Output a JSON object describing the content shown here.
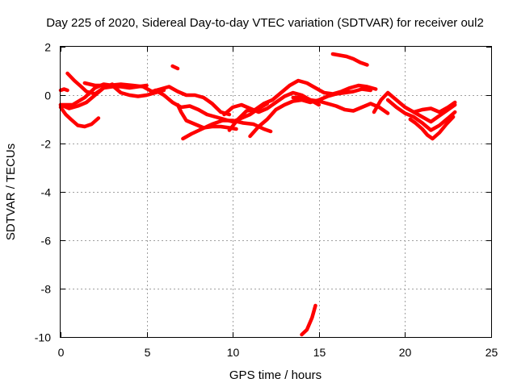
{
  "chart_data": {
    "type": "line",
    "title": "Day 225 of 2020, Sidereal Day-to-day VTEC variation (SDTVAR) for receiver oul2",
    "xlabel": "GPS time / hours",
    "ylabel": "SDTVAR / TECUs",
    "xlim": [
      0,
      25
    ],
    "ylim": [
      -10,
      2
    ],
    "xticks": [
      0,
      5,
      10,
      15,
      20,
      25
    ],
    "yticks": [
      -10,
      -8,
      -6,
      -4,
      -2,
      0,
      2
    ],
    "grid": true,
    "legend": "none",
    "series_color": "#ff0000",
    "series": [
      {
        "name": "track-1",
        "x": [
          0.0,
          0.2,
          0.4
        ],
        "y": [
          0.2,
          0.25,
          0.2
        ]
      },
      {
        "name": "track-2",
        "x": [
          0.0,
          0.3,
          0.6,
          1.0,
          1.4,
          1.8,
          2.2
        ],
        "y": [
          -0.5,
          -0.8,
          -1.0,
          -1.25,
          -1.3,
          -1.2,
          -0.95
        ]
      },
      {
        "name": "track-3",
        "x": [
          0.0,
          0.5,
          1.0,
          1.5,
          2.0,
          2.5,
          3.0
        ],
        "y": [
          -0.4,
          -0.55,
          -0.45,
          -0.3,
          0.0,
          0.3,
          0.45
        ]
      },
      {
        "name": "track-4",
        "x": [
          0.4,
          0.8,
          1.2,
          1.5,
          2.0,
          2.5,
          3.0,
          3.5,
          4.0,
          4.5,
          5.0
        ],
        "y": [
          0.9,
          0.6,
          0.35,
          0.15,
          0.05,
          0.3,
          0.35,
          0.35,
          0.3,
          0.35,
          0.4
        ]
      },
      {
        "name": "track-5",
        "x": [
          0.0,
          0.7,
          1.4,
          2.0,
          2.5,
          3.0,
          3.5,
          4.0,
          4.5,
          5.0,
          5.5,
          6.0
        ],
        "y": [
          -0.4,
          -0.4,
          -0.1,
          0.3,
          0.45,
          0.4,
          0.1,
          0.0,
          -0.05,
          0.0,
          0.1,
          0.2
        ]
      },
      {
        "name": "track-6",
        "x": [
          1.4,
          2.0,
          2.8,
          3.5,
          4.2,
          4.8,
          5.3,
          5.8,
          6.3,
          6.8,
          7.3,
          7.8,
          8.3,
          8.8,
          9.3,
          9.8
        ],
        "y": [
          0.5,
          0.4,
          0.4,
          0.45,
          0.4,
          0.35,
          0.15,
          0.25,
          0.35,
          0.15,
          0.0,
          0.0,
          -0.1,
          -0.35,
          -0.7,
          -0.8
        ]
      },
      {
        "name": "track-7",
        "x": [
          6.5,
          6.8
        ],
        "y": [
          1.2,
          1.1
        ]
      },
      {
        "name": "track-8",
        "x": [
          5.5,
          6.0,
          6.5,
          7.0,
          7.5,
          8.0,
          8.5,
          9.0,
          9.5,
          10.0,
          10.5,
          11.0,
          11.5,
          12.0
        ],
        "y": [
          0.2,
          0.0,
          -0.3,
          -0.5,
          -0.45,
          -0.6,
          -0.8,
          -0.9,
          -1.0,
          -1.1,
          -0.95,
          -0.8,
          -0.55,
          -0.35
        ]
      },
      {
        "name": "track-9",
        "x": [
          6.8,
          7.0,
          7.3,
          7.8,
          8.3,
          8.8,
          9.3,
          9.8,
          10.2
        ],
        "y": [
          -0.4,
          -0.7,
          -1.05,
          -1.2,
          -1.35,
          -1.3,
          -1.3,
          -1.35,
          -1.4
        ]
      },
      {
        "name": "track-10",
        "x": [
          7.1,
          7.6,
          8.2,
          8.8,
          9.4,
          10.0,
          10.6,
          11.2,
          11.8,
          12.2
        ],
        "y": [
          -1.8,
          -1.6,
          -1.4,
          -1.2,
          -1.05,
          -1.05,
          -1.15,
          -1.2,
          -1.4,
          -1.5
        ]
      },
      {
        "name": "track-11",
        "x": [
          9.5,
          10.0,
          10.5,
          11.0,
          11.5,
          12.0,
          12.5,
          13.0,
          13.5,
          14.0,
          14.5,
          15.0
        ],
        "y": [
          -0.8,
          -0.5,
          -0.4,
          -0.55,
          -0.7,
          -0.55,
          -0.3,
          -0.05,
          0.1,
          0.0,
          -0.2,
          -0.4
        ]
      },
      {
        "name": "track-12",
        "x": [
          9.8,
          10.3,
          10.8,
          11.3,
          11.8,
          12.3,
          12.8,
          13.3,
          13.8,
          14.3,
          14.8,
          15.3,
          15.8,
          16.3,
          16.8,
          17.3,
          17.8,
          18.3
        ],
        "y": [
          -1.45,
          -1.0,
          -0.65,
          -0.6,
          -0.35,
          -0.2,
          0.1,
          0.4,
          0.6,
          0.5,
          0.3,
          0.1,
          0.05,
          0.15,
          0.3,
          0.4,
          0.35,
          0.25
        ]
      },
      {
        "name": "track-13",
        "x": [
          11.0,
          11.5,
          12.0,
          12.5,
          13.0,
          13.5,
          14.0,
          14.5,
          15.0,
          15.5,
          16.0,
          16.5,
          17.0,
          17.5,
          18.0
        ],
        "y": [
          -1.7,
          -1.3,
          -1.0,
          -0.6,
          -0.4,
          -0.25,
          -0.2,
          -0.3,
          -0.2,
          -0.05,
          0.05,
          0.1,
          0.15,
          0.25,
          0.2
        ]
      },
      {
        "name": "track-14",
        "x": [
          13.5,
          14.0,
          14.5,
          15.0,
          15.5,
          16.0,
          16.5,
          17.0,
          17.5,
          18.0,
          18.5,
          19.0
        ],
        "y": [
          -0.1,
          -0.1,
          -0.2,
          -0.25,
          -0.35,
          -0.45,
          -0.6,
          -0.65,
          -0.5,
          -0.35,
          -0.5,
          -0.75
        ]
      },
      {
        "name": "track-15",
        "x": [
          14.0,
          14.3,
          14.6,
          14.8
        ],
        "y": [
          -9.9,
          -9.7,
          -9.2,
          -8.7
        ]
      },
      {
        "name": "track-16",
        "x": [
          15.8,
          16.2,
          16.6,
          17.0,
          17.4,
          17.8
        ],
        "y": [
          1.7,
          1.65,
          1.6,
          1.5,
          1.35,
          1.25
        ]
      },
      {
        "name": "track-17",
        "x": [
          18.2,
          18.6,
          19.0,
          19.5,
          20.0,
          20.5,
          21.0,
          21.5,
          22.0,
          22.5,
          22.9
        ],
        "y": [
          -0.7,
          -0.2,
          0.1,
          -0.2,
          -0.5,
          -0.7,
          -0.6,
          -0.55,
          -0.7,
          -0.5,
          -0.3
        ]
      },
      {
        "name": "track-18",
        "x": [
          19.0,
          19.5,
          20.0,
          20.5,
          21.0,
          21.5,
          22.0,
          22.5,
          22.9
        ],
        "y": [
          -0.2,
          -0.5,
          -0.75,
          -0.9,
          -1.15,
          -1.45,
          -1.25,
          -0.95,
          -0.7
        ]
      },
      {
        "name": "track-19",
        "x": [
          20.3,
          20.6,
          21.0,
          21.3,
          21.6,
          22.0,
          22.4,
          22.8
        ],
        "y": [
          -1.0,
          -1.15,
          -1.4,
          -1.65,
          -1.8,
          -1.55,
          -1.2,
          -0.9
        ]
      },
      {
        "name": "track-20",
        "x": [
          20.5,
          21.0,
          21.5,
          22.0,
          22.5,
          22.9
        ],
        "y": [
          -0.7,
          -0.9,
          -1.1,
          -0.85,
          -0.6,
          -0.4
        ]
      }
    ]
  }
}
